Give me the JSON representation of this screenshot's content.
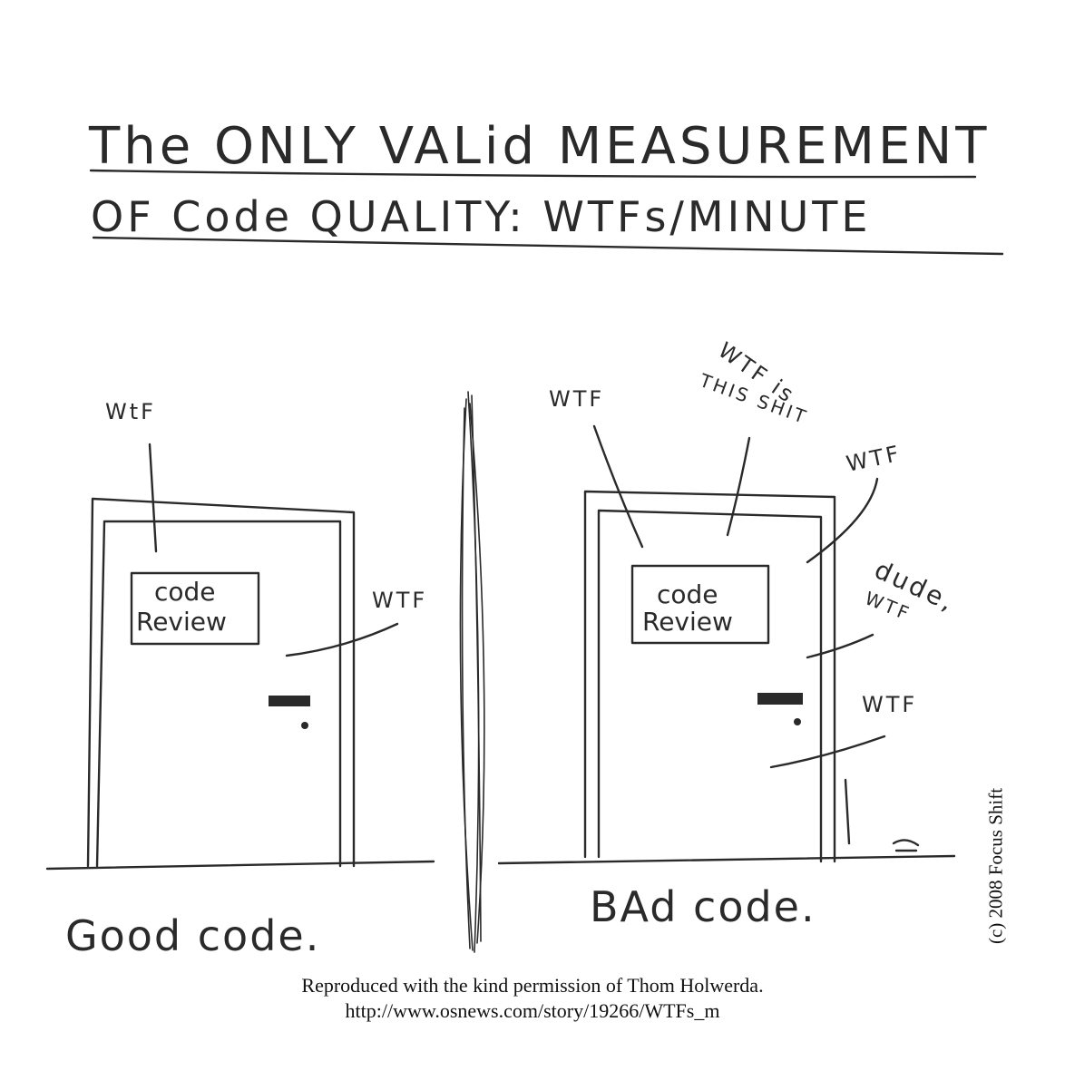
{
  "title": {
    "line1": "The ONLY VALid MEASUREMENT",
    "line2": "OF Code QUALITY: WTFs/MINUTE"
  },
  "left_panel": {
    "sign_line1": "code",
    "sign_line2": "Review",
    "exclamations": [
      "WtF",
      "WTF"
    ],
    "caption": "Good code."
  },
  "right_panel": {
    "sign_line1": "code",
    "sign_line2": "Review",
    "exclamations": [
      "WTF",
      "WTF is",
      "THIS SHIT",
      "WTF",
      "dude,",
      "WTF",
      "WTF"
    ],
    "caption": "BAd code."
  },
  "credit": {
    "line1": "Reproduced with the kind permission of Thom Holwerda.",
    "line2": "http://www.osnews.com/story/19266/WTFs_m"
  },
  "copyright": "(c) 2008 Focus Shift"
}
